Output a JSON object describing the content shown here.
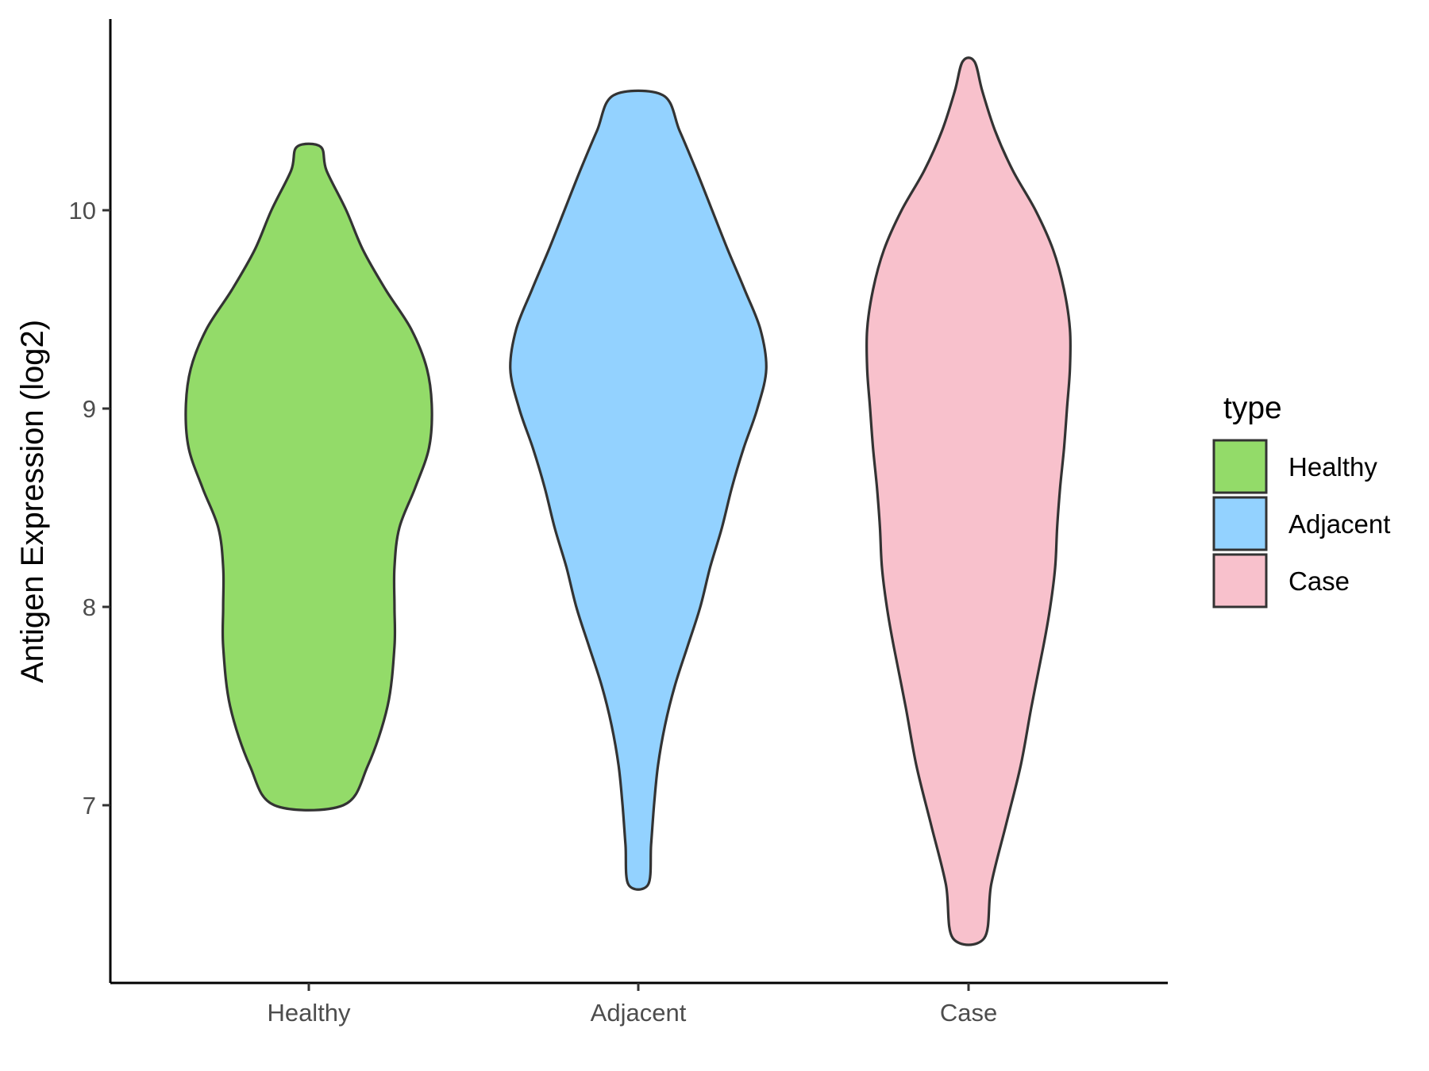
{
  "chart_data": {
    "type": "violin",
    "title": "",
    "xlabel": "",
    "ylabel": "Antigen Expression (log2)",
    "ylim": [
      6.1,
      10.95
    ],
    "yticks": [
      7,
      8,
      9,
      10
    ],
    "categories": [
      "Healthy",
      "Adjacent",
      "Case"
    ],
    "legend": {
      "title": "type",
      "placement": "right",
      "entries": [
        "Healthy",
        "Adjacent",
        "Case"
      ]
    },
    "grid": false,
    "series": [
      {
        "name": "Healthy",
        "color": "#93DB69",
        "min": 7.0,
        "max": 10.32,
        "density_profile": [
          [
            7.0,
            0.35
          ],
          [
            7.2,
            0.6
          ],
          [
            7.5,
            0.8
          ],
          [
            7.8,
            0.87
          ],
          [
            8.0,
            0.87
          ],
          [
            8.2,
            0.87
          ],
          [
            8.4,
            0.92
          ],
          [
            8.6,
            1.08
          ],
          [
            8.8,
            1.22
          ],
          [
            9.0,
            1.25
          ],
          [
            9.2,
            1.2
          ],
          [
            9.4,
            1.04
          ],
          [
            9.6,
            0.78
          ],
          [
            9.8,
            0.55
          ],
          [
            10.0,
            0.38
          ],
          [
            10.2,
            0.18
          ],
          [
            10.32,
            0.12
          ]
        ]
      },
      {
        "name": "Adjacent",
        "color": "#93D2FF",
        "min": 6.6,
        "max": 10.58,
        "density_profile": [
          [
            6.6,
            0.1
          ],
          [
            6.8,
            0.13
          ],
          [
            7.0,
            0.16
          ],
          [
            7.2,
            0.2
          ],
          [
            7.4,
            0.27
          ],
          [
            7.6,
            0.37
          ],
          [
            7.8,
            0.5
          ],
          [
            8.0,
            0.63
          ],
          [
            8.2,
            0.73
          ],
          [
            8.4,
            0.85
          ],
          [
            8.6,
            0.95
          ],
          [
            8.8,
            1.07
          ],
          [
            9.0,
            1.21
          ],
          [
            9.2,
            1.3
          ],
          [
            9.4,
            1.24
          ],
          [
            9.6,
            1.08
          ],
          [
            9.8,
            0.91
          ],
          [
            10.0,
            0.75
          ],
          [
            10.2,
            0.59
          ],
          [
            10.4,
            0.42
          ],
          [
            10.58,
            0.25
          ]
        ]
      },
      {
        "name": "Case",
        "color": "#F8C1CC",
        "min": 6.33,
        "max": 10.75,
        "density_profile": [
          [
            6.33,
            0.16
          ],
          [
            6.6,
            0.23
          ],
          [
            6.9,
            0.38
          ],
          [
            7.2,
            0.53
          ],
          [
            7.5,
            0.64
          ],
          [
            7.8,
            0.76
          ],
          [
            8.0,
            0.83
          ],
          [
            8.2,
            0.88
          ],
          [
            8.4,
            0.9
          ],
          [
            8.6,
            0.93
          ],
          [
            8.8,
            0.97
          ],
          [
            9.0,
            1.0
          ],
          [
            9.2,
            1.03
          ],
          [
            9.4,
            1.03
          ],
          [
            9.6,
            0.97
          ],
          [
            9.8,
            0.86
          ],
          [
            10.0,
            0.68
          ],
          [
            10.2,
            0.45
          ],
          [
            10.4,
            0.27
          ],
          [
            10.6,
            0.14
          ],
          [
            10.75,
            0.06
          ]
        ]
      }
    ]
  }
}
